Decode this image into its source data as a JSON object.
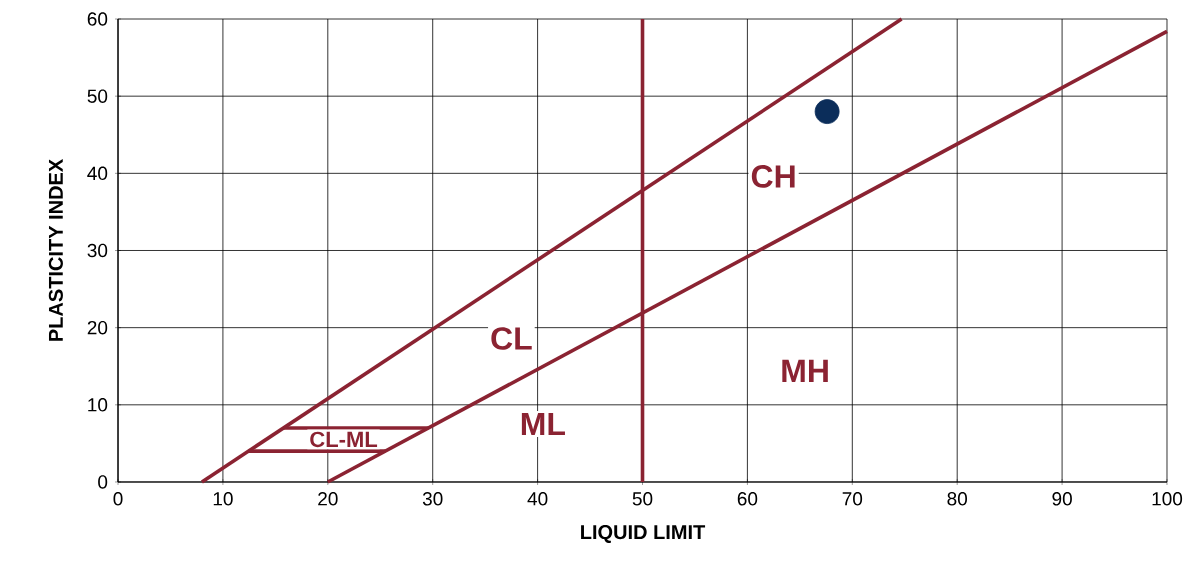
{
  "chart_data": {
    "type": "line",
    "xlabel": "LIQUID LIMIT",
    "ylabel": "PLASTICITY INDEX",
    "xlim": [
      0,
      100
    ],
    "ylim": [
      0,
      60
    ],
    "xticks": [
      0,
      10,
      20,
      30,
      40,
      50,
      60,
      70,
      80,
      90,
      100
    ],
    "yticks": [
      0,
      10,
      20,
      30,
      40,
      50,
      60
    ],
    "grid": true,
    "series": [
      {
        "color": "#8b2332",
        "x": [
          8,
          74.7
        ],
        "values": [
          0,
          60
        ]
      },
      {
        "color": "#8b2332",
        "x": [
          20,
          100
        ],
        "values": [
          0,
          58.4
        ]
      },
      {
        "color": "#8b2332",
        "x": [
          50,
          50
        ],
        "values": [
          0,
          60
        ]
      },
      {
        "color": "#8b2332",
        "x": [
          15.8,
          29.6
        ],
        "values": [
          7,
          7
        ]
      },
      {
        "color": "#8b2332",
        "x": [
          12.4,
          25.5
        ],
        "values": [
          4,
          4
        ]
      },
      {
        "type": "scatter",
        "color": "#0b2d5a",
        "marker": "circle",
        "x": [
          67.6
        ],
        "values": [
          48
        ]
      }
    ],
    "annotations": [
      "CH",
      "CL",
      "MH",
      "ML",
      "CL-ML"
    ]
  }
}
